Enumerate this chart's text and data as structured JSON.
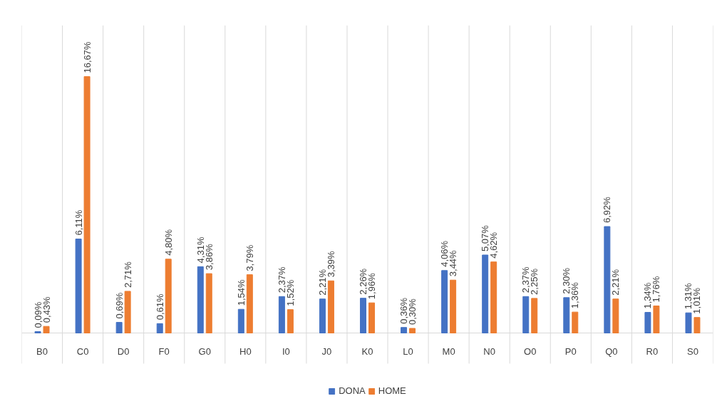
{
  "chart_data": {
    "type": "bar",
    "categories": [
      "B0",
      "C0",
      "D0",
      "F0",
      "G0",
      "H0",
      "I0",
      "J0",
      "K0",
      "L0",
      "M0",
      "N0",
      "O0",
      "P0",
      "Q0",
      "R0",
      "S0"
    ],
    "series": [
      {
        "name": "DONA",
        "color": "#4472c4",
        "values": [
          0.09,
          6.11,
          0.69,
          0.61,
          4.31,
          1.54,
          2.37,
          2.21,
          2.26,
          0.36,
          4.06,
          5.07,
          2.37,
          2.3,
          6.92,
          1.34,
          1.31
        ],
        "value_labels": [
          "0,09%",
          "6,11%",
          "0,69%",
          "0,61%",
          "4,31%",
          "1,54%",
          "2,37%",
          "2,21%",
          "2,26%",
          "0,36%",
          "4,06%",
          "5,07%",
          "2,37%",
          "2,30%",
          "6,92%",
          "1,34%",
          "1,31%"
        ]
      },
      {
        "name": "HOME",
        "color": "#ed7d31",
        "values": [
          0.43,
          16.67,
          2.71,
          4.8,
          3.86,
          3.79,
          1.52,
          3.39,
          1.96,
          0.3,
          3.44,
          4.62,
          2.25,
          1.36,
          2.21,
          1.76,
          1.01
        ],
        "value_labels": [
          "0,43%",
          "16,67%",
          "2,71%",
          "4,80%",
          "3,86%",
          "3,79%",
          "1,52%",
          "3,39%",
          "1,96%",
          "0,30%",
          "3,44%",
          "4,62%",
          "2,25%",
          "1,36%",
          "2,21%",
          "1,76%",
          "1,01%"
        ]
      }
    ],
    "grid": "x",
    "legend": "bottom"
  }
}
